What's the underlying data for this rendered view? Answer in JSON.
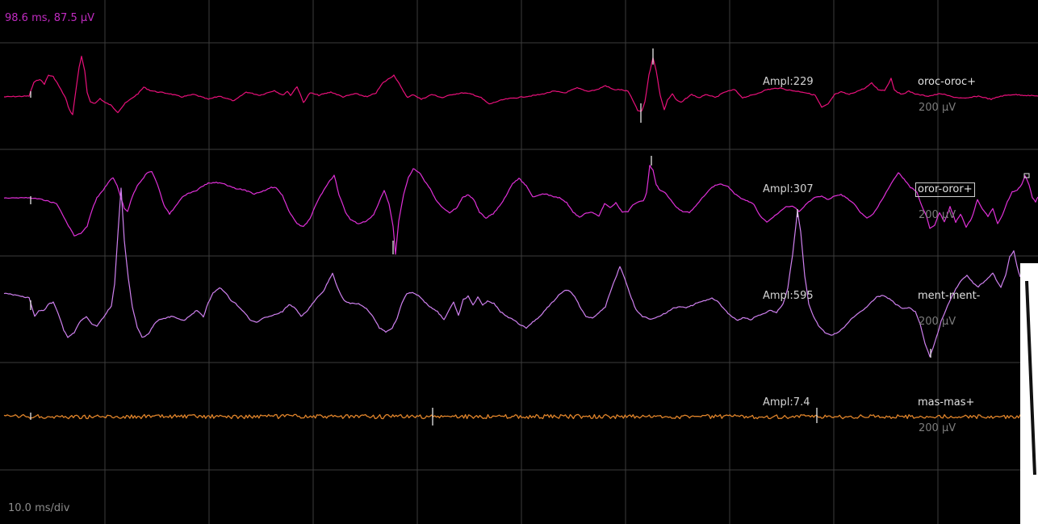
{
  "cursor_readout": "98.6 ms, 87.5 µV",
  "timebase": "10.0 ms/div",
  "channels": [
    {
      "name": "oroc-oroc+",
      "amplitude": "Ampl:229",
      "scale": "200 µV",
      "color": "#e8107a",
      "selected": false
    },
    {
      "name": "oror-oror+",
      "amplitude": "Ampl:307",
      "scale": "200 µV",
      "color": "#e030d8",
      "selected": true
    },
    {
      "name": "ment-ment-",
      "amplitude": "Ampl:595",
      "scale": "200 µV",
      "color": "#cf80ef",
      "selected": false
    },
    {
      "name": "mas-mas+",
      "amplitude": "Ampl:7.4",
      "scale": "200 µV",
      "color": "#e0842a",
      "selected": false
    }
  ],
  "colors": {
    "background": "#000000",
    "grid": "#3c3c3c",
    "marker": "#e8e8e8",
    "readout": "#c02bc0"
  }
}
